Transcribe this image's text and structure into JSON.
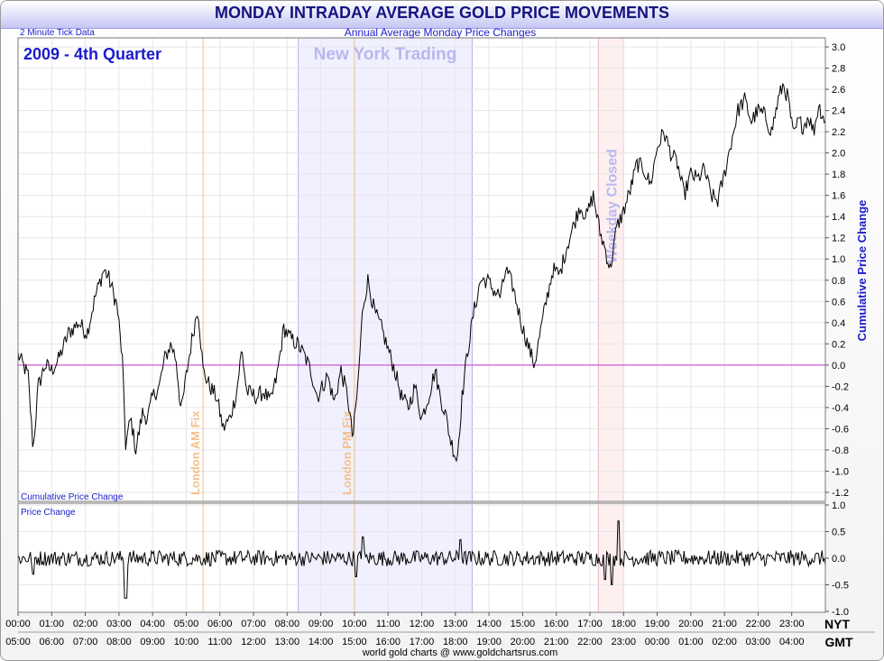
{
  "title": "MONDAY INTRADAY AVERAGE GOLD PRICE MOVEMENTS",
  "subtitle": "Annual Average Monday Price Changes",
  "tick_note": "2 Minute Tick Data",
  "period_label": "2009 - 4th Quarter",
  "footer": "world gold charts @ www.goldchartsrus.com",
  "colors": {
    "title": "#141480",
    "accent_blue": "#1c1ccc",
    "zero_line": "#cc33cc",
    "fix_line": "#f4c08a",
    "ny_band": "#f0f0ff",
    "closed_band": "#fff0f0",
    "band_label": "#b8b8f0",
    "series": "#000000"
  },
  "chart_data": [
    {
      "id": "main",
      "type": "line",
      "ylabel": "Cumulative Price Change",
      "corner_label": "Cumulative Price Change",
      "ylim": [
        -1.3,
        3.1
      ],
      "yticks": [
        "3.0",
        "2.8",
        "2.6",
        "2.4",
        "2.2",
        "2.0",
        "1.8",
        "1.6",
        "1.4",
        "1.2",
        "1.0",
        "0.8",
        "0.6",
        "0.4",
        "0.2",
        "0.0",
        "-0.2",
        "-0.4",
        "-0.6",
        "-0.8",
        "-1.0",
        "-1.2"
      ],
      "x_nyt_hours": [
        0,
        1,
        2,
        3,
        4,
        5,
        6,
        7,
        8,
        9,
        10,
        11,
        12,
        13,
        14,
        15,
        16,
        17,
        18,
        19,
        20,
        21,
        22,
        23
      ],
      "x_tick_labels_nyt": [
        "00:00",
        "01:00",
        "02:00",
        "03:00",
        "04:00",
        "05:00",
        "06:00",
        "07:00",
        "08:00",
        "09:00",
        "10:00",
        "11:00",
        "12:00",
        "13:00",
        "14:00",
        "15:00",
        "16:00",
        "17:00",
        "18:00",
        "19:00",
        "20:00",
        "21:00",
        "22:00",
        "23:00"
      ],
      "x_tick_labels_gmt": [
        "05:00",
        "06:00",
        "07:00",
        "08:00",
        "09:00",
        "10:00",
        "11:00",
        "12:00",
        "13:00",
        "14:00",
        "15:00",
        "16:00",
        "17:00",
        "18:00",
        "19:00",
        "20:00",
        "21:00",
        "22:00",
        "23:00",
        "00:00",
        "01:00",
        "02:00",
        "03:00",
        "04:00"
      ],
      "timezone_nyt": "NYT",
      "timezone_gmt": "GMT",
      "x_range_hours": [
        0,
        24
      ],
      "anchors": [
        [
          0.0,
          0.1
        ],
        [
          0.3,
          -0.1
        ],
        [
          0.45,
          -0.8
        ],
        [
          0.6,
          -0.2
        ],
        [
          0.8,
          0.0
        ],
        [
          1.0,
          -0.05
        ],
        [
          1.2,
          0.05
        ],
        [
          1.5,
          0.3
        ],
        [
          1.8,
          0.4
        ],
        [
          2.05,
          0.3
        ],
        [
          2.3,
          0.65
        ],
        [
          2.55,
          0.9
        ],
        [
          2.7,
          0.82
        ],
        [
          2.95,
          0.55
        ],
        [
          3.1,
          0.05
        ],
        [
          3.2,
          -0.75
        ],
        [
          3.35,
          -0.5
        ],
        [
          3.5,
          -0.8
        ],
        [
          3.7,
          -0.45
        ],
        [
          3.85,
          -0.5
        ],
        [
          4.0,
          -0.3
        ],
        [
          4.2,
          -0.2
        ],
        [
          4.35,
          0.05
        ],
        [
          4.55,
          0.2
        ],
        [
          4.7,
          0.05
        ],
        [
          4.85,
          -0.45
        ],
        [
          5.0,
          -0.1
        ],
        [
          5.2,
          0.3
        ],
        [
          5.35,
          0.55
        ],
        [
          5.5,
          -0.05
        ],
        [
          5.7,
          -0.2
        ],
        [
          5.9,
          -0.3
        ],
        [
          6.1,
          -0.6
        ],
        [
          6.3,
          -0.5
        ],
        [
          6.5,
          -0.25
        ],
        [
          6.65,
          0.15
        ],
        [
          6.8,
          -0.25
        ],
        [
          7.1,
          -0.3
        ],
        [
          7.3,
          -0.25
        ],
        [
          7.5,
          -0.35
        ],
        [
          7.7,
          -0.1
        ],
        [
          7.9,
          0.35
        ],
        [
          8.1,
          0.25
        ],
        [
          8.3,
          0.2
        ],
        [
          8.5,
          0.1
        ],
        [
          8.7,
          -0.05
        ],
        [
          8.9,
          -0.3
        ],
        [
          9.05,
          -0.2
        ],
        [
          9.2,
          -0.1
        ],
        [
          9.4,
          -0.35
        ],
        [
          9.6,
          -0.05
        ],
        [
          9.8,
          -0.3
        ],
        [
          9.95,
          -0.7
        ],
        [
          10.1,
          -0.2
        ],
        [
          10.25,
          0.55
        ],
        [
          10.4,
          0.8
        ],
        [
          10.6,
          0.5
        ],
        [
          10.8,
          0.35
        ],
        [
          11.0,
          0.15
        ],
        [
          11.2,
          -0.05
        ],
        [
          11.4,
          -0.3
        ],
        [
          11.6,
          -0.4
        ],
        [
          11.8,
          -0.2
        ],
        [
          12.0,
          -0.5
        ],
        [
          12.2,
          -0.3
        ],
        [
          12.4,
          -0.05
        ],
        [
          12.55,
          -0.3
        ],
        [
          12.7,
          -0.45
        ],
        [
          12.85,
          -0.7
        ],
        [
          13.05,
          -0.9
        ],
        [
          13.2,
          -0.3
        ],
        [
          13.35,
          0.1
        ],
        [
          13.55,
          0.5
        ],
        [
          13.75,
          0.8
        ],
        [
          13.95,
          0.8
        ],
        [
          14.15,
          0.7
        ],
        [
          14.35,
          0.65
        ],
        [
          14.5,
          0.9
        ],
        [
          14.7,
          0.75
        ],
        [
          14.85,
          0.55
        ],
        [
          15.0,
          0.35
        ],
        [
          15.2,
          0.15
        ],
        [
          15.35,
          0.0
        ],
        [
          15.55,
          0.35
        ],
        [
          15.7,
          0.6
        ],
        [
          15.9,
          0.9
        ],
        [
          16.1,
          0.85
        ],
        [
          16.3,
          1.1
        ],
        [
          16.5,
          1.3
        ],
        [
          16.7,
          1.5
        ],
        [
          16.9,
          1.4
        ],
        [
          17.1,
          1.6
        ],
        [
          17.3,
          1.25
        ],
        [
          17.45,
          1.1
        ],
        [
          17.6,
          0.9
        ],
        [
          17.8,
          1.3
        ],
        [
          18.0,
          1.45
        ],
        [
          18.2,
          1.65
        ],
        [
          18.4,
          1.9
        ],
        [
          18.6,
          1.85
        ],
        [
          18.8,
          1.7
        ],
        [
          19.0,
          2.05
        ],
        [
          19.2,
          2.2
        ],
        [
          19.4,
          2.0
        ],
        [
          19.6,
          1.9
        ],
        [
          19.8,
          1.6
        ],
        [
          20.0,
          1.8
        ],
        [
          20.2,
          1.75
        ],
        [
          20.4,
          1.85
        ],
        [
          20.6,
          1.6
        ],
        [
          20.8,
          1.55
        ],
        [
          21.0,
          1.8
        ],
        [
          21.2,
          2.1
        ],
        [
          21.4,
          2.4
        ],
        [
          21.6,
          2.5
        ],
        [
          21.8,
          2.3
        ],
        [
          22.0,
          2.4
        ],
        [
          22.2,
          2.35
        ],
        [
          22.4,
          2.2
        ],
        [
          22.6,
          2.5
        ],
        [
          22.75,
          2.65
        ],
        [
          22.9,
          2.5
        ],
        [
          23.05,
          2.15
        ],
        [
          23.2,
          2.3
        ],
        [
          23.35,
          2.25
        ],
        [
          23.5,
          2.35
        ],
        [
          23.65,
          2.2
        ],
        [
          23.8,
          2.45
        ],
        [
          24.0,
          2.3
        ]
      ]
    },
    {
      "id": "change",
      "type": "line",
      "corner_label": "Price Change",
      "ylim": [
        -1.0,
        1.0
      ],
      "yticks": [
        "1.0",
        "0.5",
        "0.0",
        "-0.5",
        "-1.0"
      ],
      "typical_amplitude": 0.15,
      "spikes": [
        [
          0.45,
          -0.3
        ],
        [
          3.2,
          -0.75
        ],
        [
          10.05,
          -0.35
        ],
        [
          10.25,
          0.4
        ],
        [
          13.15,
          0.35
        ],
        [
          17.45,
          -0.4
        ],
        [
          17.65,
          -0.5
        ],
        [
          17.85,
          0.7
        ]
      ]
    }
  ],
  "annotations": {
    "ny_trading": {
      "label": "New York Trading",
      "start_hour": 8.33,
      "end_hour": 13.5
    },
    "weekday_closed": {
      "label": "Weekday Closed",
      "start_hour": 17.25,
      "end_hour": 18.0
    },
    "london_am_fix": {
      "label": "London AM Fix",
      "hour": 5.5
    },
    "london_pm_fix": {
      "label": "London PM Fix",
      "hour": 10.0
    }
  }
}
